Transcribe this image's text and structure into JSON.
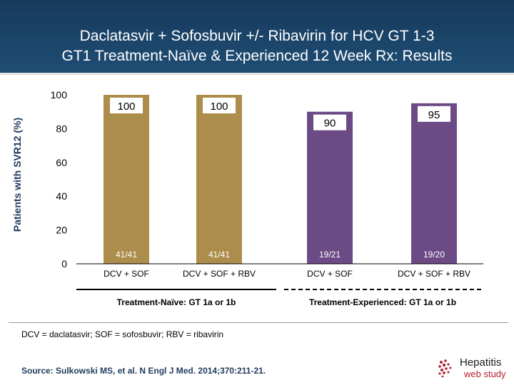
{
  "header": {
    "title_line1": "Daclatasvir + Sofosbuvir +/- Ribavirin for HCV GT 1-3",
    "title_line2": "GT1 Treatment-Naïve & Experienced 12 Week Rx: Results"
  },
  "chart_data": {
    "type": "bar",
    "ylabel": "Patients with SVR12 (%)",
    "ylim": [
      0,
      100
    ],
    "yticks": [
      0,
      20,
      40,
      60,
      80,
      100
    ],
    "categories": [
      "DCV + SOF",
      "DCV + SOF + RBV",
      "DCV + SOF",
      "DCV + SOF + RBV"
    ],
    "values": [
      100,
      100,
      90,
      95
    ],
    "value_labels": [
      "100",
      "100",
      "90",
      "95"
    ],
    "counts": [
      "41/41",
      "41/41",
      "19/21",
      "19/20"
    ],
    "bar_colors": [
      "#ad8d4b",
      "#ad8d4b",
      "#6c4a85",
      "#6c4a85"
    ],
    "groups": [
      {
        "label": "Treatment-Naïve: GT 1a or 1b",
        "bars": [
          0,
          1
        ]
      },
      {
        "label": "Treatment-Experienced: GT 1a or 1b",
        "bars": [
          2,
          3
        ]
      }
    ],
    "grid": false
  },
  "footnote": "DCV = daclatasvir; SOF = sofosbuvir; RBV = ribavirin",
  "source": "Source: Sulkowski MS, et al. N Engl J Med. 2014;370:211-21.",
  "logo": {
    "main": "Hepatitis",
    "sub": "web study"
  },
  "colors": {
    "header_bg": "#1b4468",
    "naive_bar": "#ad8d4b",
    "experienced_bar": "#6c4a85",
    "label_box": "#ffffff"
  }
}
